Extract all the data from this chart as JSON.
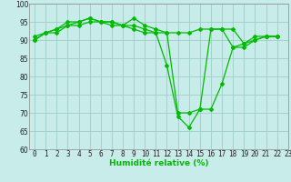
{
  "series": [
    [
      90,
      92,
      92,
      94,
      94,
      95,
      95,
      95,
      94,
      94,
      93,
      92,
      83,
      69,
      66,
      71,
      71,
      78,
      88,
      88,
      90,
      91,
      91
    ],
    [
      91,
      92,
      93,
      95,
      95,
      96,
      95,
      94,
      94,
      96,
      94,
      93,
      92,
      70,
      70,
      71,
      93,
      93,
      93,
      89,
      91,
      91,
      91
    ],
    [
      90,
      92,
      93,
      94,
      95,
      96,
      95,
      95,
      94,
      93,
      92,
      92,
      92,
      92,
      92,
      93,
      93,
      93,
      88,
      89,
      90,
      91,
      91
    ]
  ],
  "line_color": "#00bb00",
  "bg_color": "#c8ecea",
  "grid_color": "#a0ccc8",
  "xlabel": "Humidité relative (%)",
  "ylim": [
    60,
    100
  ],
  "yticks": [
    60,
    65,
    70,
    75,
    80,
    85,
    90,
    95,
    100
  ],
  "xticks": [
    0,
    1,
    2,
    3,
    4,
    5,
    6,
    7,
    8,
    9,
    10,
    11,
    12,
    13,
    14,
    15,
    16,
    17,
    18,
    19,
    20,
    21,
    22,
    23
  ],
  "xlabel_fontsize": 6.5,
  "tick_fontsize": 5.5,
  "marker": "D",
  "marker_size": 2.0,
  "linewidth": 0.9
}
